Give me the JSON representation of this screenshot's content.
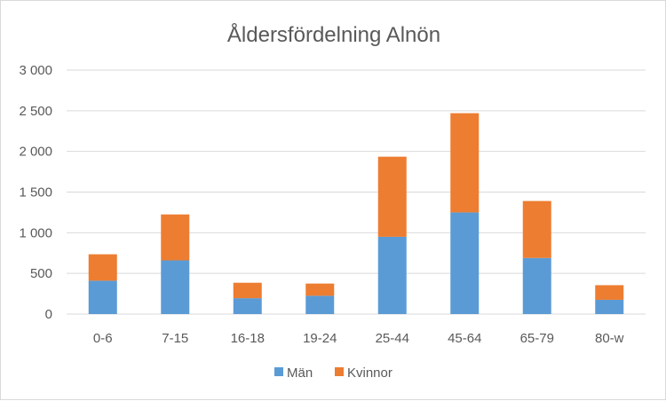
{
  "chart_data": {
    "type": "bar",
    "stacked": true,
    "title": "Åldersfördelning Alnön",
    "xlabel": "",
    "ylabel": "",
    "categories": [
      "0-6",
      "7-15",
      "16-18",
      "19-24",
      "25-44",
      "45-64",
      "65-79",
      "80-w"
    ],
    "series": [
      {
        "name": "Män",
        "color": "#5b9bd5",
        "values": [
          410,
          660,
          195,
          225,
          950,
          1250,
          690,
          175
        ]
      },
      {
        "name": "Kvinnor",
        "color": "#ed7d31",
        "values": [
          325,
          565,
          190,
          150,
          985,
          1220,
          700,
          180
        ]
      }
    ],
    "ylim": [
      0,
      3000
    ],
    "yticks": [
      0,
      500,
      1000,
      1500,
      2000,
      2500,
      3000
    ],
    "ytick_labels": [
      "0",
      "500",
      "1 000",
      "1 500",
      "2 000",
      "2 500",
      "3 000"
    ],
    "grid": true,
    "legend_position": "bottom"
  }
}
